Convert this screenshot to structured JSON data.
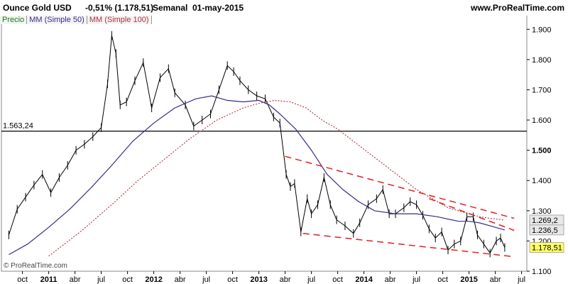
{
  "header": {
    "instrument": "Ounce Gold USD",
    "change": "-0,51% (1.178,51)",
    "period": "Semanal",
    "date": "01-may-2015",
    "site": "www.ProRealTime.com"
  },
  "legend": {
    "price": "Precio",
    "ma50": "MM (Simple 50)",
    "ma100": "MM (Simple 100)"
  },
  "watermark": "© ProRealTime.com",
  "colors": {
    "price": "#000000",
    "ma50": "#3a2a8a",
    "ma100": "#b03040",
    "trendline": "#e02020",
    "current_label_bg": "#ffff66",
    "level_label_bg": "#e8e8e8"
  },
  "chart_data": {
    "type": "line",
    "title": "Ounce Gold USD",
    "ylim": [
      1100,
      1950
    ],
    "y_ticks": [
      "1.900",
      "1.800",
      "1.700",
      "1.600",
      "1.500",
      "1.400",
      "1.300",
      "1.200",
      "1.100"
    ],
    "x_ticks": [
      {
        "label": "oct",
        "t": 2010.75,
        "bold": false
      },
      {
        "label": "2011",
        "t": 2011.0,
        "bold": true
      },
      {
        "label": "abr",
        "t": 2011.25,
        "bold": false
      },
      {
        "label": "jul",
        "t": 2011.5,
        "bold": false
      },
      {
        "label": "oct",
        "t": 2011.75,
        "bold": false
      },
      {
        "label": "2012",
        "t": 2012.0,
        "bold": true
      },
      {
        "label": "abr",
        "t": 2012.25,
        "bold": false
      },
      {
        "label": "jul",
        "t": 2012.5,
        "bold": false
      },
      {
        "label": "oct",
        "t": 2012.75,
        "bold": false
      },
      {
        "label": "2013",
        "t": 2013.0,
        "bold": true
      },
      {
        "label": "abr",
        "t": 2013.25,
        "bold": false
      },
      {
        "label": "jul",
        "t": 2013.5,
        "bold": false
      },
      {
        "label": "oct",
        "t": 2013.75,
        "bold": false
      },
      {
        "label": "2014",
        "t": 2014.0,
        "bold": true
      },
      {
        "label": "abr",
        "t": 2014.25,
        "bold": false
      },
      {
        "label": "jul",
        "t": 2014.5,
        "bold": false
      },
      {
        "label": "oct",
        "t": 2014.75,
        "bold": false
      },
      {
        "label": "2015",
        "t": 2015.0,
        "bold": true
      },
      {
        "label": "abr",
        "t": 2015.25,
        "bold": false
      },
      {
        "label": "jul",
        "t": 2015.5,
        "bold": false
      }
    ],
    "horizontal_level": {
      "value": 1563.24,
      "label": "1.563,24"
    },
    "value_labels": [
      {
        "name": "ma100-label",
        "value": 1269.2,
        "text": "1.269,2"
      },
      {
        "name": "ma50-label",
        "value": 1236.5,
        "text": "1.236,5"
      },
      {
        "name": "price-label",
        "value": 1178.51,
        "text": "1.178,51"
      }
    ],
    "series": [
      {
        "name": "Precio",
        "x": [
          2010.62,
          2010.7,
          2010.78,
          2010.86,
          2010.94,
          2011.02,
          2011.1,
          2011.18,
          2011.26,
          2011.34,
          2011.42,
          2011.5,
          2011.56,
          2011.6,
          2011.64,
          2011.68,
          2011.74,
          2011.82,
          2011.9,
          2011.98,
          2012.06,
          2012.14,
          2012.2,
          2012.3,
          2012.38,
          2012.46,
          2012.54,
          2012.62,
          2012.7,
          2012.76,
          2012.82,
          2012.9,
          2012.98,
          2013.06,
          2013.14,
          2013.2,
          2013.26,
          2013.3,
          2013.34,
          2013.4,
          2013.46,
          2013.5,
          2013.56,
          2013.62,
          2013.68,
          2013.74,
          2013.82,
          2013.9,
          2013.96,
          2014.04,
          2014.12,
          2014.18,
          2014.24,
          2014.3,
          2014.38,
          2014.44,
          2014.5,
          2014.56,
          2014.62,
          2014.68,
          2014.74,
          2014.8,
          2014.86,
          2014.92,
          2014.98,
          2015.04,
          2015.08,
          2015.14,
          2015.2,
          2015.26,
          2015.3,
          2015.34
        ],
        "values": [
          1220,
          1305,
          1345,
          1385,
          1420,
          1360,
          1410,
          1450,
          1500,
          1520,
          1545,
          1575,
          1720,
          1880,
          1820,
          1650,
          1660,
          1730,
          1790,
          1640,
          1740,
          1770,
          1690,
          1650,
          1580,
          1600,
          1620,
          1700,
          1780,
          1760,
          1730,
          1700,
          1680,
          1670,
          1610,
          1590,
          1420,
          1380,
          1390,
          1230,
          1340,
          1290,
          1320,
          1410,
          1320,
          1270,
          1250,
          1225,
          1260,
          1320,
          1340,
          1370,
          1290,
          1290,
          1310,
          1330,
          1320,
          1285,
          1240,
          1210,
          1230,
          1170,
          1190,
          1200,
          1280,
          1280,
          1220,
          1190,
          1160,
          1200,
          1210,
          1178.51
        ]
      },
      {
        "name": "MM (Simple 50)",
        "x": [
          2010.62,
          2010.8,
          2011.0,
          2011.2,
          2011.4,
          2011.6,
          2011.8,
          2012.0,
          2012.2,
          2012.4,
          2012.55,
          2012.7,
          2012.85,
          2013.0,
          2013.1,
          2013.2,
          2013.35,
          2013.5,
          2013.65,
          2013.8,
          2013.95,
          2014.1,
          2014.3,
          2014.5,
          2014.7,
          2014.9,
          2015.0,
          2015.1,
          2015.2,
          2015.34
        ],
        "values": [
          1155,
          1190,
          1245,
          1305,
          1375,
          1450,
          1530,
          1590,
          1640,
          1670,
          1680,
          1665,
          1660,
          1665,
          1650,
          1620,
          1570,
          1500,
          1420,
          1370,
          1330,
          1300,
          1290,
          1290,
          1280,
          1265,
          1265,
          1260,
          1250,
          1236.5
        ]
      },
      {
        "name": "MM (Simple 100)",
        "x": [
          2011.0,
          2011.3,
          2011.6,
          2011.85,
          2012.1,
          2012.35,
          2012.6,
          2012.85,
          2013.0,
          2013.15,
          2013.3,
          2013.45,
          2013.6,
          2013.75,
          2013.9,
          2014.05,
          2014.2,
          2014.35,
          2014.5,
          2014.65,
          2014.8,
          2014.95,
          2015.1,
          2015.2,
          2015.34
        ],
        "values": [
          1150,
          1230,
          1320,
          1400,
          1470,
          1540,
          1600,
          1640,
          1655,
          1665,
          1660,
          1640,
          1600,
          1570,
          1530,
          1490,
          1450,
          1410,
          1370,
          1340,
          1310,
          1295,
          1280,
          1275,
          1269.2
        ]
      }
    ],
    "trendlines": [
      {
        "name": "upper-channel-line",
        "x": [
          2013.25,
          2015.43
        ],
        "values": [
          1480,
          1275
        ]
      },
      {
        "name": "lower-channel-line",
        "x": [
          2013.42,
          2015.43
        ],
        "values": [
          1225,
          1148
        ]
      },
      {
        "name": "upper-extension-line",
        "x": [
          2014.62,
          2015.43
        ],
        "values": [
          1340,
          1235
        ]
      }
    ]
  }
}
